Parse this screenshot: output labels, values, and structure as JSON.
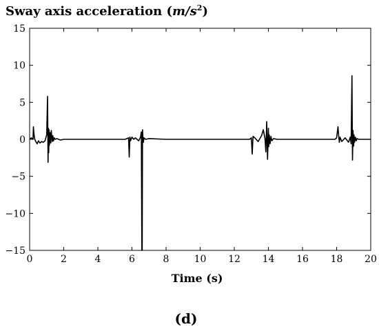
{
  "chart_data": {
    "type": "line",
    "title": {
      "prefix": "Sway  axis acceleration (",
      "unit_main": "m/s",
      "unit_sup": "2",
      "suffix": ")"
    },
    "xlabel": "Time (s)",
    "ylabel": "",
    "xlim": [
      0,
      20
    ],
    "ylim": [
      -15,
      15
    ],
    "x_ticks": [
      0,
      2,
      4,
      6,
      8,
      10,
      12,
      14,
      16,
      18,
      20
    ],
    "y_ticks": [
      15,
      10,
      5,
      0,
      -5,
      -10,
      -15
    ],
    "grid": false,
    "line_color": "#000000",
    "series": [
      {
        "x": [
          0,
          0.1,
          0.2,
          0.22,
          0.26,
          0.3,
          0.36,
          0.44,
          0.52,
          0.6,
          0.7,
          0.8,
          0.9,
          1.0,
          1.05,
          1.08,
          1.1,
          1.12,
          1.14,
          1.16,
          1.2,
          1.24,
          1.27,
          1.3,
          1.33,
          1.36,
          1.4,
          1.45,
          1.5,
          1.6,
          1.8,
          2.0,
          3.0,
          4.0,
          5.0,
          5.6,
          5.8,
          5.84,
          5.88,
          5.92,
          6.0,
          6.1,
          6.2,
          6.3,
          6.4,
          6.5,
          6.55,
          6.58,
          6.6,
          6.62,
          6.64,
          6.67,
          6.7,
          6.8,
          7.0,
          8.0,
          10.0,
          12.0,
          12.9,
          13.0,
          13.05,
          13.1,
          13.2,
          13.4,
          13.6,
          13.7,
          13.8,
          13.85,
          13.9,
          13.95,
          14.0,
          14.02,
          14.05,
          14.1,
          14.15,
          14.2,
          14.3,
          14.5,
          15.0,
          17.0,
          17.9,
          18.0,
          18.08,
          18.12,
          18.16,
          18.2,
          18.3,
          18.5,
          18.7,
          18.8,
          18.85,
          18.9,
          18.93,
          18.96,
          19.0,
          19.02,
          19.05,
          19.1,
          19.15,
          19.2,
          19.3,
          19.5,
          20.0
        ],
        "y": [
          0,
          0.2,
          0,
          1.7,
          0.6,
          0,
          -0.3,
          -0.6,
          -0.2,
          -0.5,
          -0.3,
          -0.4,
          -0.2,
          0.6,
          5.8,
          -3.1,
          1.5,
          -1.8,
          1.3,
          -0.8,
          0.9,
          -0.5,
          1.2,
          0.3,
          -0.3,
          0.5,
          -0.2,
          0.2,
          0,
          0.1,
          -0.1,
          0,
          0,
          0,
          0,
          0,
          0.2,
          -2.4,
          0.3,
          -0.2,
          0.3,
          0,
          0.2,
          0,
          -0.2,
          0.3,
          1.0,
          -15,
          -15,
          1.3,
          0.3,
          -0.4,
          0.2,
          0,
          0.1,
          0,
          0,
          0,
          0,
          0.2,
          -2.0,
          0.4,
          0.2,
          -0.3,
          0.5,
          1.3,
          0.1,
          -1.7,
          2.4,
          -2.7,
          1.5,
          -1.0,
          0.6,
          -0.6,
          0.4,
          -0.2,
          0.1,
          0,
          0,
          0,
          0,
          0.2,
          1.7,
          0.5,
          -0.4,
          0.3,
          -0.3,
          0.2,
          -0.4,
          0.3,
          -0.6,
          8.6,
          -2.8,
          1.2,
          -0.9,
          0.6,
          -0.4,
          0.3,
          -0.2,
          0.1,
          0,
          0,
          0
        ]
      }
    ]
  },
  "panel_label": "(d)"
}
